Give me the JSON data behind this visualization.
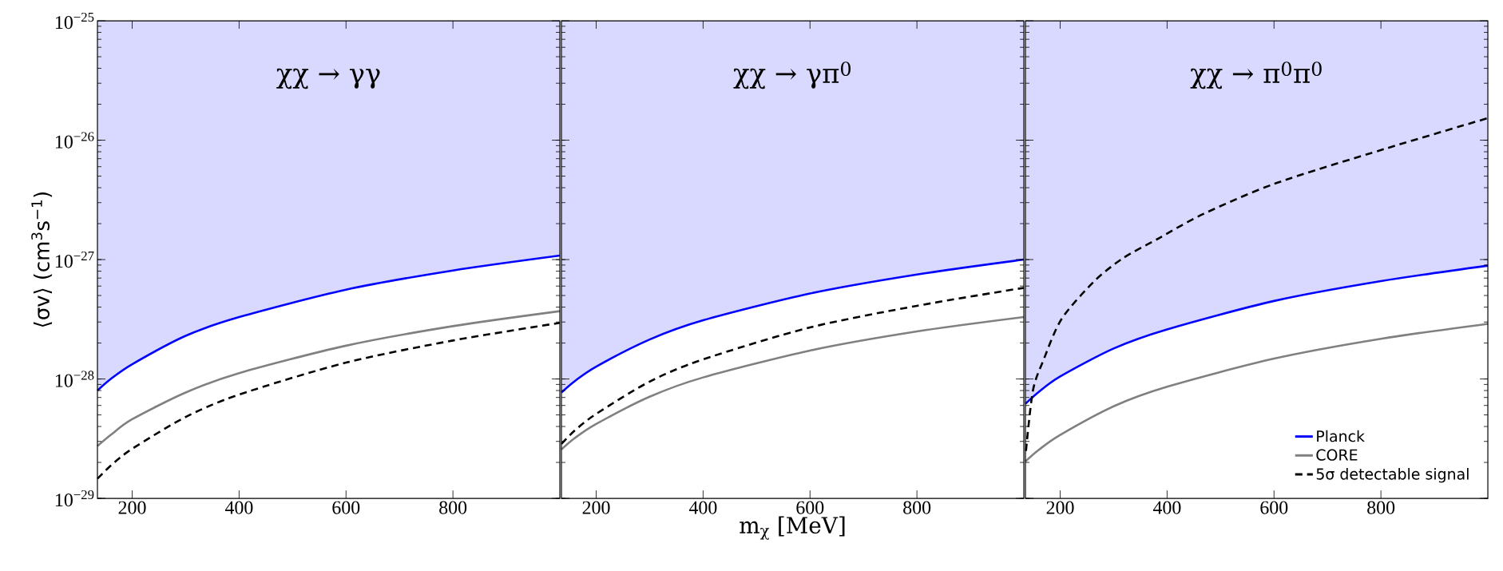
{
  "chart_data": [
    {
      "type": "line",
      "title": "χχ → γγ",
      "ylabel": "⟨σv⟩ (cm$^{3}$s$^{−1}$)",
      "x": [
        135,
        160,
        200,
        300,
        400,
        600,
        800,
        1000
      ],
      "xlim": [
        135,
        1000
      ],
      "ylim": [
        1e-29,
        1e-25
      ],
      "xticks": [
        200,
        400,
        600,
        800
      ],
      "yticks": [
        {
          "value": 1e-29,
          "label": "10$^{−29}$"
        },
        {
          "value": 1e-28,
          "label": "10$^{−28}$"
        },
        {
          "value": 1e-27,
          "label": "10$^{−27}$"
        },
        {
          "value": 1e-26,
          "label": "10$^{−26}$"
        },
        {
          "value": 1e-25,
          "label": "10$^{−25}$"
        }
      ],
      "log": "y",
      "legend": false,
      "series": [
        {
          "color": "#0000ff",
          "values": [
            8e-29,
            1e-28,
            1.33e-28,
            2.3e-28,
            3.3e-28,
            5.6e-28,
            8.1e-28,
            1.08e-27
          ],
          "lower": [
            8e-29,
            1e-28,
            1.33e-28,
            2.3e-28,
            3.3e-28,
            5.6e-28,
            8.1e-28,
            1.08e-27
          ],
          "upper": [
            1e-25,
            1e-25,
            1e-25,
            1e-25,
            1e-25,
            1e-25,
            1e-25,
            1e-25
          ]
        },
        {
          "color": "#808080",
          "values": [
            2.74e-29,
            3.4e-29,
            4.6e-29,
            7.7e-29,
            1.12e-28,
            1.9e-28,
            2.77e-28,
            3.7e-28
          ]
        },
        {
          "color": "#000000",
          "line_style": "dashed",
          "values": [
            1.46e-29,
            1.88e-29,
            2.6e-29,
            4.8e-29,
            7.4e-29,
            1.37e-28,
            2.1e-28,
            2.95e-28
          ]
        }
      ]
    },
    {
      "type": "line",
      "title": "χχ → γπ$^{0}$",
      "xlabel": "m$_{χ}$ [MeV]",
      "x": [
        135,
        160,
        200,
        300,
        400,
        600,
        800,
        1000
      ],
      "xlim": [
        135,
        1000
      ],
      "ylim": [
        1e-29,
        1e-25
      ],
      "xticks": [
        200,
        400,
        600,
        800
      ],
      "yticks": [
        {
          "value": 1e-29,
          "label": null
        },
        {
          "value": 1e-28,
          "label": null
        },
        {
          "value": 1e-27,
          "label": null
        },
        {
          "value": 1e-26,
          "label": null
        },
        {
          "value": 1e-25,
          "label": null
        }
      ],
      "log": "y",
      "legend": false,
      "tick_labels": "x",
      "series": [
        {
          "color": "#0000ff",
          "values": [
            7.7e-29,
            9.6e-29,
            1.27e-28,
            2.14e-28,
            3.1e-28,
            5.2e-28,
            7.5e-28,
            1e-27
          ],
          "lower": [
            7.7e-29,
            9.6e-29,
            1.27e-28,
            2.14e-28,
            3.1e-28,
            5.2e-28,
            7.5e-28,
            1e-27
          ],
          "upper": [
            1e-25,
            1e-25,
            1e-25,
            1e-25,
            1e-25,
            1e-25,
            1e-25,
            1e-25
          ]
        },
        {
          "color": "#808080",
          "values": [
            2.57e-29,
            3.2e-29,
            4.2e-29,
            7.1e-29,
            1.03e-28,
            1.73e-28,
            2.5e-28,
            3.3e-28
          ]
        },
        {
          "color": "#000000",
          "line_style": "dashed",
          "values": [
            2.86e-29,
            3.7e-29,
            5.1e-29,
            9.5e-29,
            1.46e-28,
            2.7e-28,
            4.1e-28,
            5.8e-28
          ]
        }
      ]
    },
    {
      "type": "line",
      "title": "χχ → π$^{0}$π$^{0}$",
      "x": [
        135,
        160,
        200,
        300,
        400,
        600,
        800,
        1000
      ],
      "xlim": [
        135,
        1000
      ],
      "ylim": [
        1e-29,
        1e-25
      ],
      "xticks": [
        200,
        400,
        600,
        800
      ],
      "yticks": [
        {
          "value": 1e-29,
          "label": null
        },
        {
          "value": 1e-28,
          "label": null
        },
        {
          "value": 1e-27,
          "label": null
        },
        {
          "value": 1e-26,
          "label": null
        },
        {
          "value": 1e-25,
          "label": null
        }
      ],
      "log": "y",
      "legend": "bottom right",
      "tick_labels": "x",
      "series": [
        {
          "name": "Planck",
          "color": "#0000ff",
          "values": [
            6.2e-29,
            7.8e-29,
            1.05e-28,
            1.8e-28,
            2.6e-28,
            4.5e-28,
            6.6e-28,
            8.9e-28
          ],
          "lower": [
            6.2e-29,
            7.8e-29,
            1.05e-28,
            1.8e-28,
            2.6e-28,
            4.5e-28,
            6.6e-28,
            8.9e-28
          ],
          "upper": [
            1e-25,
            1e-25,
            1e-25,
            1e-25,
            1e-25,
            1e-25,
            1e-25,
            1e-25
          ]
        },
        {
          "name": "CORE",
          "color": "#808080",
          "values": [
            2.04e-29,
            2.55e-29,
            3.4e-29,
            5.9e-29,
            8.6e-29,
            1.48e-28,
            2.17e-28,
            2.9e-28
          ]
        },
        {
          "name": "5σ detectable signal",
          "color": "#000000",
          "line_style": "dashed",
          "x": [
            136,
            149,
            169,
            203,
            264,
            318,
            386,
            467,
            603,
            807,
            1000
          ],
          "values": [
            2.5e-29,
            8e-29,
            1.45e-28,
            3.2e-28,
            6.6e-28,
            1.03e-27,
            1.52e-27,
            2.4e-27,
            4.35e-27,
            8.45e-27,
            1.53e-26
          ]
        }
      ]
    }
  ]
}
